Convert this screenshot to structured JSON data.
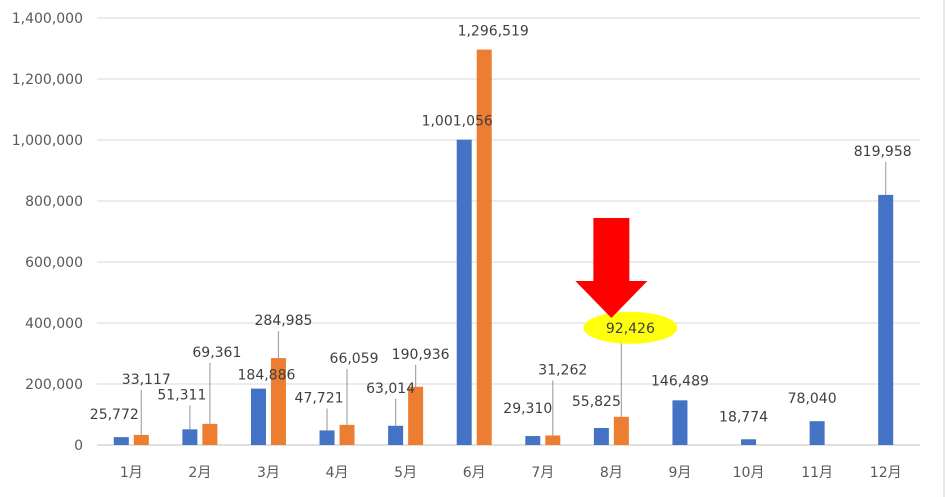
{
  "chart_data": {
    "type": "bar",
    "title": "",
    "xlabel": "",
    "ylabel": "",
    "categories": [
      "1月",
      "2月",
      "3月",
      "4月",
      "5月",
      "6月",
      "7月",
      "8月",
      "9月",
      "10月",
      "11月",
      "12月"
    ],
    "series": [
      {
        "color": "#4472C4",
        "values": [
          25772,
          51311,
          184886,
          47721,
          63014,
          1001056,
          29310,
          55825,
          146489,
          18774,
          78040,
          819958
        ],
        "labels": [
          "25,772",
          "51,311",
          "184,886",
          "47,721",
          "63,014",
          "1,001,056",
          "29,310",
          "55,825",
          "146,489",
          "18,774",
          "78,040",
          "819,958"
        ]
      },
      {
        "color": "#ED7D31",
        "values": [
          33117,
          69361,
          284985,
          66059,
          190936,
          1296519,
          31262,
          92426,
          null,
          null,
          null,
          null
        ],
        "labels": [
          "33,117",
          "69,361",
          "284,985",
          "66,059",
          "190,936",
          "1,296,519",
          "31,262",
          "92,426",
          "",
          "",
          "",
          ""
        ]
      }
    ],
    "ylim": [
      0,
      1400000
    ],
    "yticks": [
      0,
      200000,
      400000,
      600000,
      800000,
      1000000,
      1200000,
      1400000
    ],
    "ytick_labels": [
      "0",
      "200,000",
      "400,000",
      "600,000",
      "800,000",
      "1,000,000",
      "1,200,000",
      "1,400,000"
    ],
    "grid": true,
    "legend": "none",
    "annotations": [
      {
        "type": "arrow",
        "color": "#FF0000",
        "points_to": "8月",
        "series": 2
      },
      {
        "type": "highlight",
        "color": "#FFFF00",
        "target": "92,426"
      }
    ]
  }
}
